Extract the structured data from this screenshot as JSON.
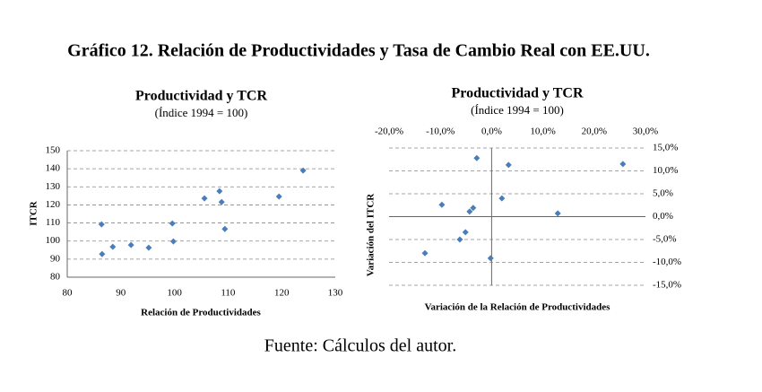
{
  "header": {
    "title": "Gráfico 12. Relación de Productividades y Tasa de Cambio Real con EE.UU."
  },
  "chart_data": [
    {
      "type": "scatter",
      "title": "Productividad y TCR",
      "subtitle": "(Índice 1994 = 100)",
      "x_label": "Relación de Productividades",
      "y_label": "ITCR",
      "xlim": [
        80,
        130
      ],
      "xticks": [
        80,
        90,
        100,
        110,
        120,
        130
      ],
      "ylim": [
        80,
        150
      ],
      "yticks": [
        80,
        90,
        100,
        110,
        120,
        130,
        140,
        150
      ],
      "grid": true,
      "axis_cross": "edge",
      "x_tick_position": "bottom",
      "y_tick_position": "left",
      "color": "#4a7ebb",
      "x": [
        86.4,
        86.5,
        88.5,
        91.9,
        95.2,
        99.6,
        99.8,
        105.6,
        108.4,
        108.8,
        109.4,
        119.5,
        124.0
      ],
      "y": [
        109.2,
        92.8,
        96.8,
        97.8,
        96.3,
        109.7,
        99.8,
        123.6,
        127.6,
        121.6,
        106.7,
        124.6,
        139.0
      ]
    },
    {
      "type": "scatter",
      "title": "Productividad y TCR",
      "subtitle": "(Índice 1994 = 100)",
      "x_label": "Variación de la Relación de Productividades",
      "y_label": "Variación del ITCR",
      "xlim": [
        -20,
        30
      ],
      "xticks": [
        {
          "value": -20,
          "label": "-20,0%"
        },
        {
          "value": -10,
          "label": "-10,0%"
        },
        {
          "value": 0,
          "label": "0,0%"
        },
        {
          "value": 10,
          "label": "10,0%"
        },
        {
          "value": 20,
          "label": "20,0%"
        },
        {
          "value": 30,
          "label": "30,0%"
        }
      ],
      "ylim": [
        -15,
        15
      ],
      "yticks": [
        {
          "value": -15,
          "label": "-15,0%"
        },
        {
          "value": -10,
          "label": "-10,0%"
        },
        {
          "value": -5,
          "label": "-5,0%"
        },
        {
          "value": 0,
          "label": "0,0%"
        },
        {
          "value": 5,
          "label": "5,0%"
        },
        {
          "value": 10,
          "label": "10,0%"
        },
        {
          "value": 15,
          "label": "15,0%"
        }
      ],
      "grid": true,
      "axis_cross": "zero",
      "x_tick_position": "top",
      "y_tick_position": "right",
      "color": "#4a7ebb",
      "x": [
        -2.9,
        3.3,
        25.6,
        -9.7,
        2.0,
        -3.6,
        -4.3,
        12.9,
        -5.1,
        -6.2,
        -13.0,
        -0.2
      ],
      "y": [
        12.8,
        11.3,
        11.5,
        2.6,
        4.0,
        1.9,
        1.1,
        0.7,
        -3.4,
        -5.0,
        -8.0,
        -9.1
      ]
    }
  ],
  "source": "Fuente: Cálculos del autor."
}
